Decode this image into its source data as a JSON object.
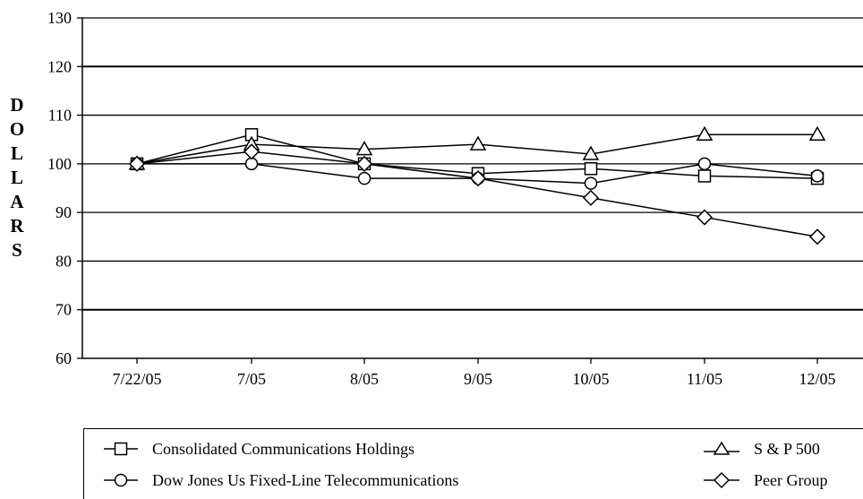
{
  "chart_data": {
    "type": "line",
    "ylabel": "DOLLARS",
    "xlabel": "",
    "ylim": [
      60,
      130
    ],
    "yticks": [
      60,
      70,
      80,
      90,
      100,
      110,
      120,
      130
    ],
    "categories": [
      "7/22/05",
      "7/05",
      "8/05",
      "9/05",
      "10/05",
      "11/05",
      "12/05"
    ],
    "grid": true,
    "legend_position": "bottom",
    "series": [
      {
        "name": "Consolidated Communications Holdings",
        "marker": "square",
        "values": [
          100,
          106,
          100,
          98,
          99,
          97.5,
          97
        ]
      },
      {
        "name": "Dow Jones Us Fixed-Line Telecommunications",
        "marker": "circle",
        "values": [
          100,
          100,
          97,
          97,
          96,
          100,
          97.5
        ]
      },
      {
        "name": "S & P 500",
        "marker": "triangle",
        "values": [
          100,
          104,
          103,
          104,
          102,
          106,
          106
        ]
      },
      {
        "name": "Peer Group",
        "marker": "diamond",
        "values": [
          100,
          102.5,
          100,
          97,
          93,
          89,
          85
        ]
      }
    ]
  }
}
